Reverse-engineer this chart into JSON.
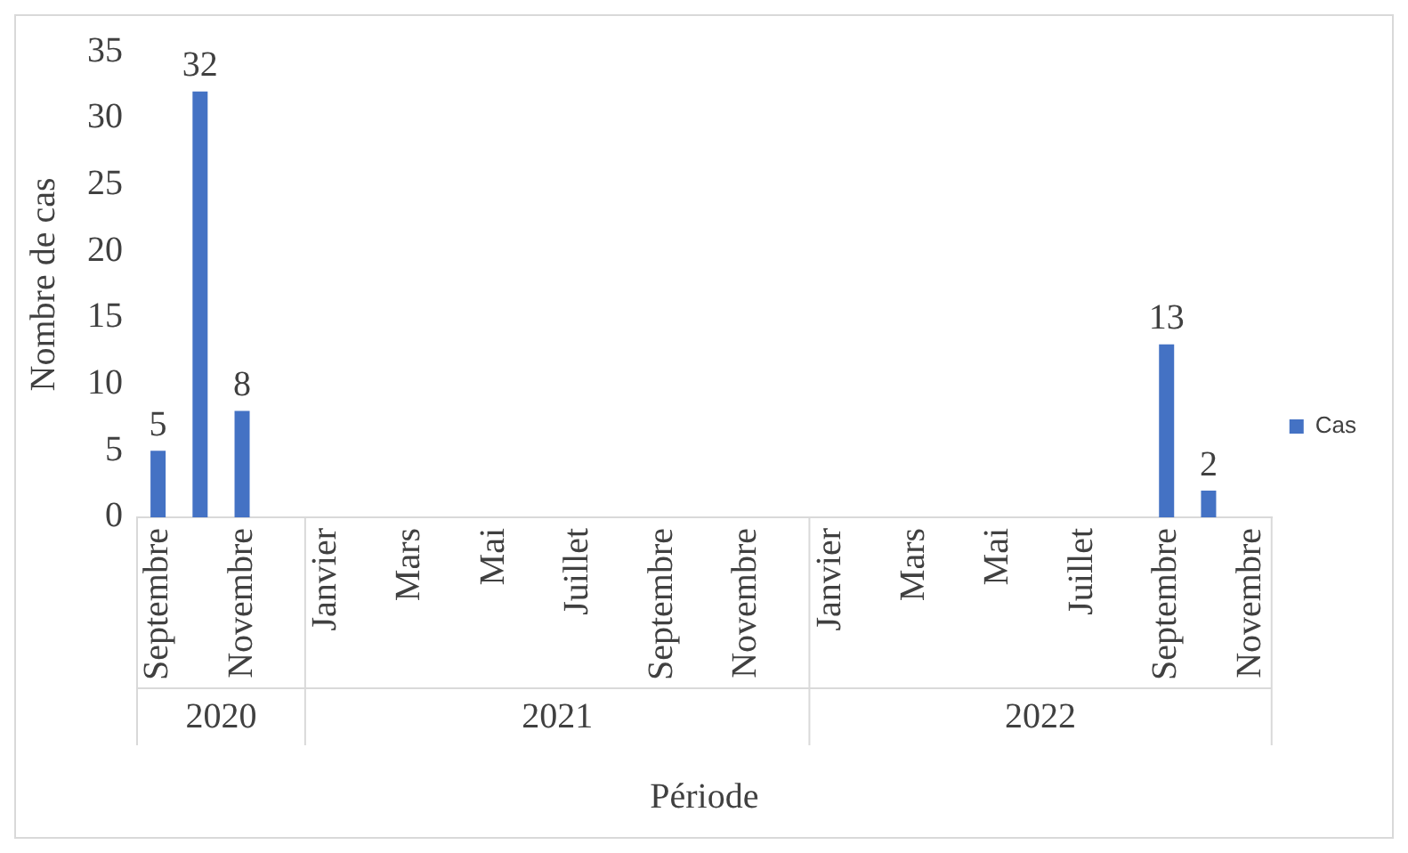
{
  "chart_data": {
    "type": "bar",
    "ylabel": "Nombre de cas",
    "xlabel": "Période",
    "categories": [
      "Septembre",
      null,
      "Novembre",
      null,
      "Janvier",
      null,
      "Mars",
      null,
      "Mai",
      null,
      "Juillet",
      null,
      "Septembre",
      null,
      "Novembre",
      null,
      "Janvier",
      null,
      "Mars",
      null,
      "Mai",
      null,
      "Juillet",
      null,
      "Septembre",
      null,
      "Novembre"
    ],
    "series": [
      {
        "name": "Cas",
        "color": "#4472c4",
        "values": [
          5,
          32,
          8,
          null,
          null,
          null,
          null,
          null,
          null,
          null,
          null,
          null,
          null,
          null,
          null,
          null,
          null,
          null,
          null,
          null,
          null,
          null,
          null,
          null,
          13,
          2,
          null
        ]
      }
    ],
    "annotations": [
      "2020",
      "2021",
      "2022"
    ],
    "ylim": [
      0,
      35
    ],
    "yticks": [
      0,
      5,
      10,
      15,
      20,
      25,
      30,
      35
    ],
    "grid": false,
    "legend": "right",
    "data_labels": true
  }
}
